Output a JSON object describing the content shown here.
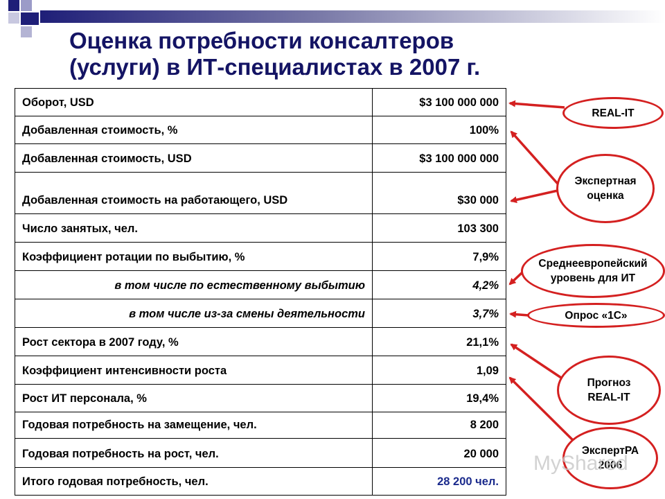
{
  "title": {
    "line1": "Оценка потребности консалтеров",
    "line2": "(услуги) в ИТ-специалистах в 2007 г."
  },
  "table": {
    "rows": [
      {
        "label": "Оборот, USD",
        "value": "$3 100 000 000"
      },
      {
        "label": "Добавленная стоимость, %",
        "value": "100%"
      },
      {
        "label": "Добавленная стоимость, USD",
        "value": "$3 100 000 000"
      },
      {
        "label": "Добавленная стоимость на работающего, USD",
        "value": "$30 000"
      },
      {
        "label": "Число занятых, чел.",
        "value": "103 300"
      },
      {
        "label": "Коэффициент ротации по выбытию, %",
        "value": "7,9%"
      },
      {
        "label": "в том числе по естественному выбытию",
        "value": "4,2%"
      },
      {
        "label": "в том числе из-за смены деятельности",
        "value": "3,7%"
      },
      {
        "label": "Рост сектора в 2007 году, %",
        "value": "21,1%"
      },
      {
        "label": "Коэффициент интенсивности роста",
        "value": "1,09"
      },
      {
        "label": "Рост ИТ персонала, %",
        "value": "19,4%"
      },
      {
        "label": "Годовая потребность на замещение, чел.",
        "value": "8 200"
      },
      {
        "label": "Годовая потребность на рост, чел.",
        "value": "20 000"
      },
      {
        "label": "Итого годовая потребность, чел.",
        "value": "28 200 чел."
      }
    ]
  },
  "sources": {
    "real_it": "REAL-IT",
    "expert": "Экспертная оценка",
    "central_europe": "Среднеевропейский уровень для ИТ",
    "survey_1c": "Опрос «1С»",
    "forecast": "Прогноз REAL-IT",
    "expert_ra": "ЭкспертРА 2006"
  },
  "watermark": "MyShared",
  "colors": {
    "title": "#141464",
    "arrow": "#d42020",
    "total": "#1a2a8c"
  }
}
